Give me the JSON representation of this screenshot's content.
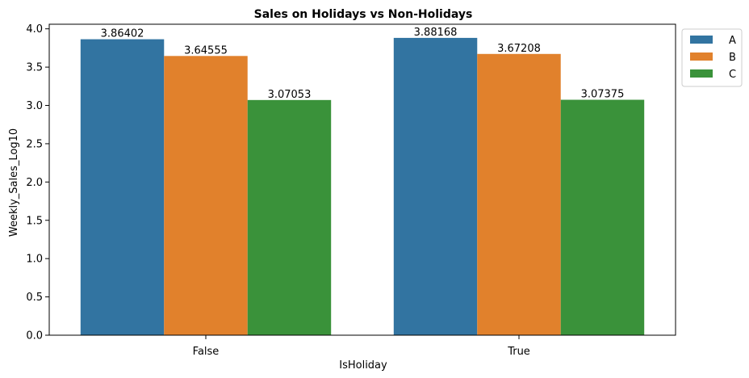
{
  "chart_data": {
    "type": "bar",
    "title": "Sales on Holidays vs Non-Holidays",
    "xlabel": "IsHoliday",
    "ylabel": "Weekly_Sales_Log10",
    "categories": [
      "False",
      "True"
    ],
    "series": [
      {
        "name": "A",
        "color": "#3274a1",
        "values": [
          3.86402,
          3.88168
        ],
        "labels": [
          "3.86402",
          "3.88168"
        ]
      },
      {
        "name": "B",
        "color": "#e1812c",
        "values": [
          3.64555,
          3.67208
        ],
        "labels": [
          "3.64555",
          "3.67208"
        ]
      },
      {
        "name": "C",
        "color": "#3a923a",
        "values": [
          3.07053,
          3.07375
        ],
        "labels": [
          "3.07053",
          "3.07375"
        ]
      }
    ],
    "ylim": [
      0,
      4.06
    ],
    "yticks": [
      0.0,
      0.5,
      1.0,
      1.5,
      2.0,
      2.5,
      3.0,
      3.5,
      4.0
    ],
    "ytick_labels": [
      "0.0",
      "0.5",
      "1.0",
      "1.5",
      "2.0",
      "2.5",
      "3.0",
      "3.5",
      "4.0"
    ],
    "grid": false,
    "legend_position": "outside-top-right"
  }
}
